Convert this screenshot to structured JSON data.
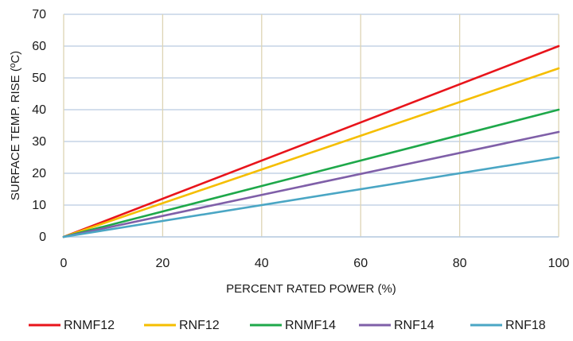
{
  "chart_data": {
    "type": "line",
    "xlabel": "PERCENT RATED POWER (%)",
    "ylabel": "SURFACE TEMP. RISE (ºC)",
    "xlim": [
      0,
      100
    ],
    "ylim": [
      0,
      70
    ],
    "x_ticks": [
      "0",
      "20",
      "40",
      "60",
      "80",
      "100"
    ],
    "y_ticks": [
      "0",
      "10",
      "20",
      "30",
      "40",
      "50",
      "60",
      "70"
    ],
    "grid": true,
    "legend_position": "bottom",
    "x": [
      0,
      100
    ],
    "series": [
      {
        "name": "RNMF12",
        "color": "#e8141b",
        "values": [
          0,
          60
        ]
      },
      {
        "name": "RNF12",
        "color": "#f5be00",
        "values": [
          0,
          53
        ]
      },
      {
        "name": "RNMF14",
        "color": "#1ea84a",
        "values": [
          0,
          40
        ]
      },
      {
        "name": "RNF14",
        "color": "#7f5fa8",
        "values": [
          0,
          33
        ]
      },
      {
        "name": "RNF18",
        "color": "#4aa6c4",
        "values": [
          0,
          25
        ]
      }
    ]
  }
}
